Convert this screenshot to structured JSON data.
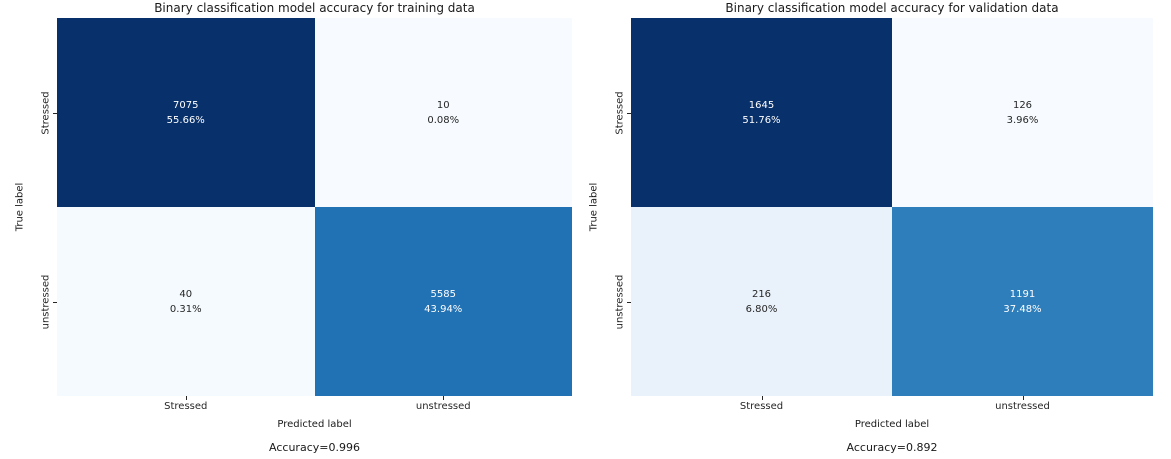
{
  "panels": [
    {
      "title": "Binary classification model accuracy for training data",
      "xlabel": "Predicted label",
      "ylabel": "True label",
      "accuracy_label": "Accuracy=0.996",
      "x_ticklabels": [
        "Stressed",
        "unstressed"
      ],
      "y_ticklabels": [
        "Stressed",
        "unstressed"
      ],
      "cells": [
        {
          "count": "7075",
          "percent": "55.66%",
          "bg": "#08306b",
          "fg": "#ffffff"
        },
        {
          "count": "10",
          "percent": "0.08%",
          "bg": "#f7fbff",
          "fg": "#262626"
        },
        {
          "count": "40",
          "percent": "0.31%",
          "bg": "#f5fafe",
          "fg": "#262626"
        },
        {
          "count": "5585",
          "percent": "43.94%",
          "bg": "#2171b5",
          "fg": "#ffffff"
        }
      ]
    },
    {
      "title": "Binary classification model accuracy for validation data",
      "xlabel": "Predicted label",
      "ylabel": "True label",
      "accuracy_label": "Accuracy=0.892",
      "x_ticklabels": [
        "Stressed",
        "unstressed"
      ],
      "y_ticklabels": [
        "Stressed",
        "unstressed"
      ],
      "cells": [
        {
          "count": "1645",
          "percent": "51.76%",
          "bg": "#08306b",
          "fg": "#ffffff"
        },
        {
          "count": "126",
          "percent": "3.96%",
          "bg": "#f7fbff",
          "fg": "#262626"
        },
        {
          "count": "216",
          "percent": "6.80%",
          "bg": "#e9f2fb",
          "fg": "#262626"
        },
        {
          "count": "1191",
          "percent": "37.48%",
          "bg": "#2f7ebc",
          "fg": "#ffffff"
        }
      ]
    }
  ],
  "colors": {
    "background": "#ffffff",
    "colormap_max": "#08306b",
    "colormap_min": "#f7fbff",
    "text_on_dark": "#ffffff",
    "text_on_light": "#262626"
  },
  "chart_data": [
    {
      "type": "heatmap",
      "title": "Binary classification model accuracy for training data",
      "xlabel": "Predicted label",
      "ylabel": "True label",
      "x_categories": [
        "Stressed",
        "unstressed"
      ],
      "y_categories": [
        "Stressed",
        "unstressed"
      ],
      "values": [
        [
          7075,
          10
        ],
        [
          40,
          5585
        ]
      ],
      "percentages": [
        [
          55.66,
          0.08
        ],
        [
          0.31,
          43.94
        ]
      ],
      "annotation": "Accuracy=0.996",
      "colormap": "Blues",
      "legend_position": "none",
      "grid": false
    },
    {
      "type": "heatmap",
      "title": "Binary classification model accuracy for validation data",
      "xlabel": "Predicted label",
      "ylabel": "True label",
      "x_categories": [
        "Stressed",
        "unstressed"
      ],
      "y_categories": [
        "Stressed",
        "unstressed"
      ],
      "values": [
        [
          1645,
          126
        ],
        [
          216,
          1191
        ]
      ],
      "percentages": [
        [
          51.76,
          3.96
        ],
        [
          6.8,
          37.48
        ]
      ],
      "annotation": "Accuracy=0.892",
      "colormap": "Blues",
      "legend_position": "none",
      "grid": false
    }
  ]
}
